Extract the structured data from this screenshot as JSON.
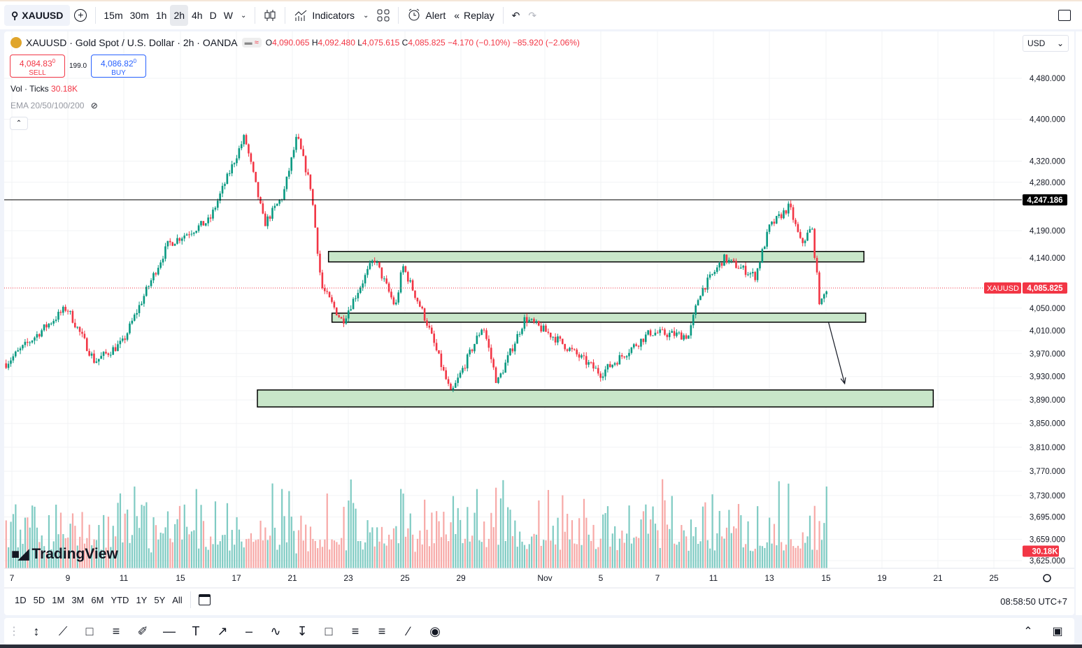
{
  "topbar": {
    "symbol": "XAUUSD",
    "intervals": [
      "15m",
      "30m",
      "1h",
      "2h",
      "4h",
      "D",
      "W"
    ],
    "active_interval": "2h",
    "indicators_label": "Indicators",
    "alert_label": "Alert",
    "replay_label": "Replay"
  },
  "legend": {
    "title": "XAUUSD · Gold Spot / U.S. Dollar · 2h · OANDA",
    "o_label": "O",
    "o": "4,090.065",
    "h_label": "H",
    "h": "4,092.480",
    "l_label": "L",
    "l": "4,075.615",
    "c_label": "C",
    "c": "4,085.825",
    "change": "−4.170 (−0.10%)",
    "change2": "−85.920 (−2.06%)"
  },
  "trade": {
    "sell_price": "4,084.83",
    "sell_sup": "0",
    "sell_label": "SELL",
    "spread": "199.0",
    "buy_price": "4,086.82",
    "buy_sup": "0",
    "buy_label": "BUY"
  },
  "volume": {
    "label": "Vol · Ticks",
    "value": "30.18K"
  },
  "ema": {
    "label": "EMA 20/50/100/200"
  },
  "currency": "USD",
  "logo_text": "TradingView",
  "ranges": [
    "1D",
    "5D",
    "1M",
    "3M",
    "6M",
    "YTD",
    "1Y",
    "5Y",
    "All"
  ],
  "clock": "08:58:50 UTC+7",
  "colors": {
    "up": "#089981",
    "down": "#f23645",
    "zone_fill": "#c8e6c9",
    "vol_up": "#7fcbc3",
    "vol_down": "#f7a9a7"
  },
  "drawing_tools": [
    "cursor-cross",
    "trend-line",
    "rectangle",
    "fib-retracement",
    "brush",
    "horizontal-ray",
    "text",
    "arrow",
    "horizontal-line",
    "path",
    "measure",
    "callout",
    "long-position",
    "short-position",
    "parallel-channel",
    "circle"
  ],
  "chart_data": {
    "type": "candlestick",
    "scale": "log",
    "ylim": [
      3610,
      4560
    ],
    "y_ticks": [
      "4,480.000",
      "4,400.000",
      "4,320.000",
      "4,280.000",
      "4,190.000",
      "4,140.000",
      "4,050.000",
      "4,010.000",
      "3,970.000",
      "3,930.000",
      "3,890.000",
      "3,850.000",
      "3,810.000",
      "3,770.000",
      "3,730.000",
      "3,695.000",
      "3,659.000",
      "3,625.000"
    ],
    "x_ticks": [
      "7",
      "9",
      "11",
      "15",
      "17",
      "21",
      "23",
      "25",
      "29",
      "Nov",
      "5",
      "7",
      "11",
      "13",
      "15",
      "19",
      "21",
      "25"
    ],
    "price_path": [
      {
        "t": "Oct 6 19:00",
        "price": 3953
      },
      {
        "t": "Oct 8 23:00",
        "price": 4051
      },
      {
        "t": "Oct 9 23:00",
        "price": 3956
      },
      {
        "t": "Oct 10 23:00",
        "price": 3989
      },
      {
        "t": "Oct 14 03:00",
        "price": 4165
      },
      {
        "t": "Oct 16 01:00",
        "price": 4209
      },
      {
        "t": "Oct 17 14:00",
        "price": 4367
      },
      {
        "t": "Oct 19 00:00",
        "price": 4202
      },
      {
        "t": "Oct 20 08:00",
        "price": 4255
      },
      {
        "t": "Oct 21 04:00",
        "price": 4367
      },
      {
        "t": "Oct 21 16:00",
        "price": 4268
      },
      {
        "t": "Oct 22 01:00",
        "price": 4088
      },
      {
        "t": "Oct 22 19:00",
        "price": 4026
      },
      {
        "t": "Oct 23 22:00",
        "price": 4139
      },
      {
        "t": "Oct 24 16:00",
        "price": 4051
      },
      {
        "t": "Oct 24 22:00",
        "price": 4126
      },
      {
        "t": "Oct 26 13:00",
        "price": 4026
      },
      {
        "t": "Oct 28 07:00",
        "price": 3899
      },
      {
        "t": "Oct 29 19:00",
        "price": 4020
      },
      {
        "t": "Oct 30 07:00",
        "price": 3918
      },
      {
        "t": "Oct 31 07:00",
        "price": 4032
      },
      {
        "t": "Nov 1 13:00",
        "price": 4001
      },
      {
        "t": "Nov 5 00:00",
        "price": 3935
      },
      {
        "t": "Nov 6 18:00",
        "price": 4007
      },
      {
        "t": "Nov 9 06:00",
        "price": 4001
      },
      {
        "t": "Nov 10 00:00",
        "price": 4076
      },
      {
        "t": "Nov 11 09:00",
        "price": 4139
      },
      {
        "t": "Nov 12 12:00",
        "price": 4107
      },
      {
        "t": "Nov 13 00:00",
        "price": 4196
      },
      {
        "t": "Nov 13 17:00",
        "price": 4235
      },
      {
        "t": "Nov 14 03:00",
        "price": 4165
      },
      {
        "t": "Nov 14 12:00",
        "price": 4196
      },
      {
        "t": "Nov 14 19:00",
        "price": 4051
      },
      {
        "t": "Nov 15 01:00",
        "price": 4085.825
      }
    ],
    "horizontal_line": {
      "price": 4247.186,
      "label": "4,247.186"
    },
    "last_price": {
      "price": 4085.825,
      "label": "4,085.825",
      "symbol": "XAUUSD"
    },
    "volume_label": "30.18K",
    "zones": [
      {
        "from": "Oct 22 07:00",
        "to": "Nov 17 17:00",
        "top": 4152,
        "bottom": 4133
      },
      {
        "from": "Oct 22 10:00",
        "to": "Nov 17 20:00",
        "top": 4041,
        "bottom": 4025
      },
      {
        "from": "Oct 18 12:00",
        "to": "Nov 20 20:00",
        "top": 3907,
        "bottom": 3878
      }
    ],
    "arrow": {
      "from": {
        "t": "Nov 15 04:00",
        "price": 4026
      },
      "to": {
        "t": "Nov 16 08:00",
        "price": 3918
      }
    }
  }
}
